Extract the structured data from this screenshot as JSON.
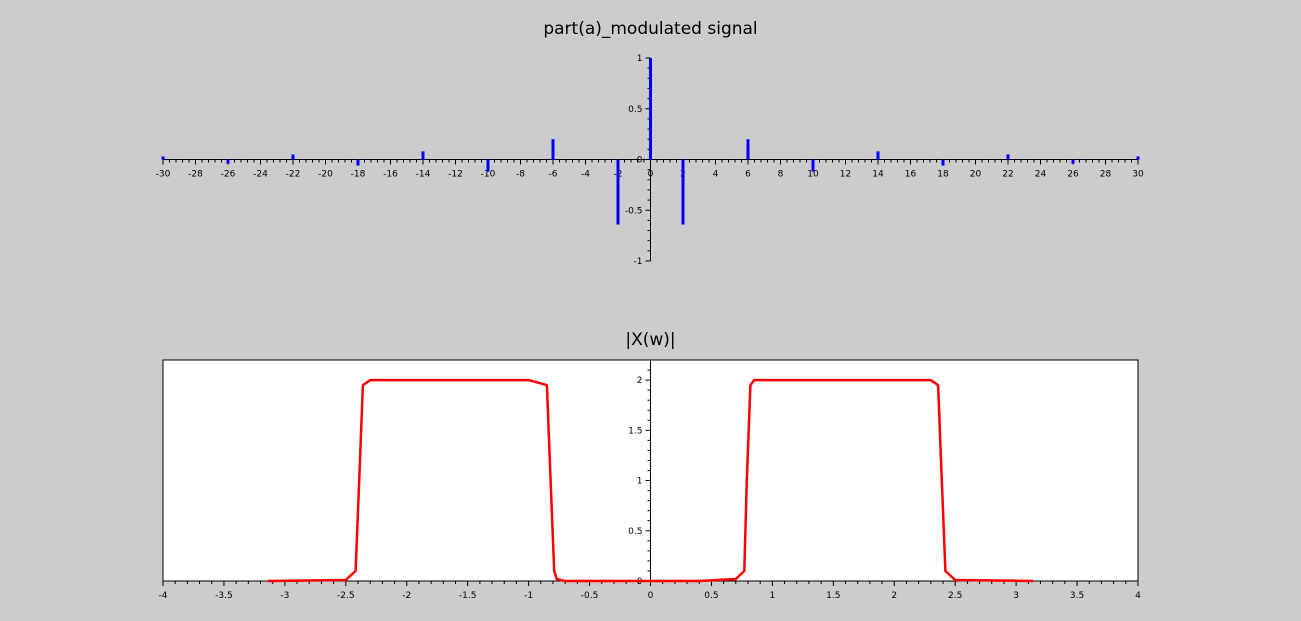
{
  "chart_data": [
    {
      "type": "stem",
      "title": "part(a)_modulated signal",
      "xlabel": "",
      "ylabel": "",
      "xlim": [
        -30,
        30
      ],
      "ylim": [
        -1,
        1
      ],
      "xticks": [
        -30,
        -28,
        -26,
        -24,
        -22,
        -20,
        -18,
        -16,
        -14,
        -12,
        -10,
        -8,
        -6,
        -4,
        -2,
        0,
        2,
        4,
        6,
        8,
        10,
        12,
        14,
        16,
        18,
        20,
        22,
        24,
        26,
        28,
        30
      ],
      "yticks": [
        -1,
        -0.5,
        0,
        0.5,
        1
      ],
      "axes_background": "#cccccc",
      "series": [
        {
          "color": "#0000ff",
          "x": [
            -30,
            -26,
            -22,
            -18,
            -14,
            -10,
            -6,
            -2,
            0,
            2,
            6,
            10,
            14,
            18,
            22,
            26,
            30
          ],
          "y": [
            0.03,
            -0.04,
            0.05,
            -0.06,
            0.08,
            -0.12,
            0.2,
            -0.64,
            1.0,
            -0.64,
            0.2,
            -0.12,
            0.08,
            -0.06,
            0.05,
            -0.04,
            0.03
          ]
        }
      ]
    },
    {
      "type": "line",
      "title": "|X(w)|",
      "xlabel": "",
      "ylabel": "",
      "xlim": [
        -4,
        4
      ],
      "ylim": [
        0,
        2.2
      ],
      "xticks": [
        -4,
        -3.5,
        -3,
        -2.5,
        -2,
        -1.5,
        -1,
        -0.5,
        0,
        0.5,
        1,
        1.5,
        2,
        2.5,
        3,
        3.5,
        4
      ],
      "yticks": [
        0,
        0.5,
        1,
        1.5,
        2
      ],
      "axes_background": "#ffffff",
      "series": [
        {
          "color": "#ff0000",
          "x": [
            -3.14,
            -2.5,
            -2.42,
            -2.39,
            -2.36,
            -2.3,
            -2.1,
            -1.5,
            -1.0,
            -0.85,
            -0.82,
            -0.79,
            -0.77,
            -0.7,
            -0.4,
            0.0,
            0.4,
            0.7,
            0.77,
            0.79,
            0.82,
            0.85,
            1.0,
            1.5,
            2.1,
            2.3,
            2.36,
            2.39,
            2.42,
            2.5,
            3.14
          ],
          "y": [
            0,
            0.01,
            0.1,
            1.0,
            1.95,
            2.0,
            2.0,
            2.0,
            2.0,
            1.95,
            1.0,
            0.1,
            0.02,
            0,
            0,
            0,
            0,
            0.02,
            0.1,
            1.0,
            1.95,
            2.0,
            2.0,
            2.0,
            2.0,
            2.0,
            1.95,
            1.0,
            0.1,
            0.01,
            0
          ]
        }
      ]
    }
  ]
}
